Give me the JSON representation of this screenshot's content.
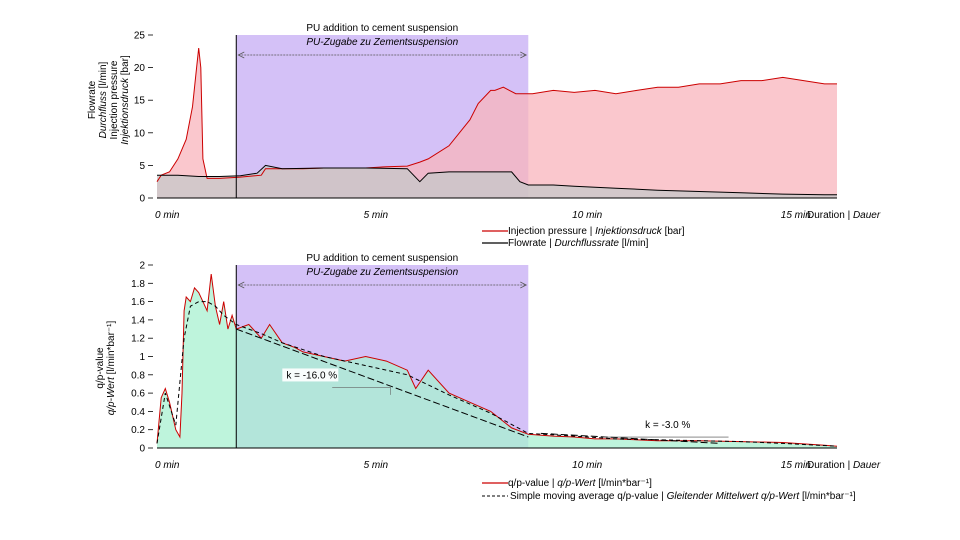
{
  "chart_data": [
    {
      "type": "area",
      "annotation": {
        "title": "PU addition to cement suspension",
        "subtitle": "PU-Zugabe zu Zementsuspension",
        "x_range": [
          1.9,
          8.9
        ]
      },
      "ylabel": {
        "line1": "Flowrate",
        "line2": "Durchfluss",
        "line2_unit": " [l/min]",
        "line3": "Injection pressure",
        "line4": "Injektionsdruck",
        "line4_unit": " [bar]"
      },
      "xlabel": {
        "main": "Duration | ",
        "italic": "Dauer"
      },
      "xticks": [
        {
          "x": 0,
          "label": "0 min"
        },
        {
          "x": 5,
          "label": "5 min"
        },
        {
          "x": 10,
          "label": "10 min"
        },
        {
          "x": 15,
          "label": "15 min"
        }
      ],
      "yticks": [
        {
          "y": 0,
          "label": "0"
        },
        {
          "y": 5,
          "label": "5"
        },
        {
          "y": 10,
          "label": "10"
        },
        {
          "y": 15,
          "label": "15"
        },
        {
          "y": 20,
          "label": "20"
        },
        {
          "y": 25,
          "label": "25"
        }
      ],
      "xlim": [
        0,
        16.3
      ],
      "ylim": [
        0,
        25
      ],
      "grid": false,
      "legend_position": "bottom-right",
      "series": [
        {
          "legend_main": "Injection pressure | ",
          "legend_italic": "Injektionsdruck",
          "legend_unit": " [bar]",
          "color": "#cc0000",
          "fill": "#f8b4bc",
          "x": [
            0,
            0.1,
            0.3,
            0.5,
            0.7,
            0.85,
            0.95,
            1.0,
            1.05,
            1.1,
            1.2,
            1.5,
            2.0,
            2.5,
            2.6,
            3.0,
            3.5,
            4.0,
            4.5,
            5.0,
            5.5,
            6.0,
            6.3,
            6.5,
            7.0,
            7.5,
            7.7,
            8.0,
            8.1,
            8.3,
            8.6,
            9.0,
            9.5,
            10.0,
            10.5,
            11.0,
            11.5,
            12.0,
            12.5,
            13.0,
            13.5,
            14.0,
            14.5,
            15.0,
            15.5,
            16.0,
            16.3
          ],
          "y": [
            2.5,
            3.5,
            4.0,
            6.0,
            9.0,
            14.0,
            20.0,
            23.0,
            20.0,
            6.0,
            3.0,
            3.0,
            3.2,
            3.5,
            4.5,
            4.5,
            4.5,
            4.6,
            4.6,
            4.6,
            4.8,
            4.9,
            5.5,
            6.0,
            8.0,
            12.0,
            14.5,
            16.5,
            16.5,
            17.0,
            16.0,
            16.0,
            16.5,
            16.2,
            16.5,
            16.0,
            16.5,
            17.0,
            17.0,
            17.5,
            17.5,
            18.0,
            18.0,
            18.5,
            18.0,
            17.5,
            17.5
          ]
        },
        {
          "legend_main": "Flowrate | ",
          "legend_italic": "Durchflussrate",
          "legend_unit": " [l/min]",
          "color": "#000000",
          "fill": "#c6c8c8",
          "x": [
            0,
            0.5,
            1.0,
            1.2,
            1.5,
            2.0,
            2.4,
            2.6,
            3.0,
            4.0,
            5.0,
            6.0,
            6.3,
            6.5,
            7.0,
            7.5,
            8.0,
            8.5,
            8.7,
            8.9,
            9.5,
            10.0,
            11.0,
            12.0,
            13.0,
            14.0,
            15.0,
            16.0,
            16.3
          ],
          "y": [
            3.5,
            3.5,
            3.3,
            3.3,
            3.3,
            3.4,
            3.8,
            5.0,
            4.5,
            4.6,
            4.6,
            4.5,
            2.5,
            3.8,
            4.0,
            4.0,
            4.0,
            4.0,
            2.5,
            2.0,
            2.0,
            1.8,
            1.5,
            1.2,
            1.0,
            0.8,
            0.6,
            0.5,
            0.5
          ]
        }
      ]
    },
    {
      "type": "area",
      "annotation": {
        "title": "PU addition to cement suspension",
        "subtitle": "PU-Zugabe zu Zementsuspension",
        "x_range": [
          1.9,
          8.9
        ]
      },
      "ylabel": {
        "line1": "q/p-value",
        "line2": "q/p-Wert",
        "line2_unit": " [l/min*bar⁻¹]"
      },
      "xlabel": {
        "main": "Duration | ",
        "italic": "Dauer"
      },
      "xticks": [
        {
          "x": 0,
          "label": "0 min"
        },
        {
          "x": 5,
          "label": "5 min"
        },
        {
          "x": 10,
          "label": "10 min"
        },
        {
          "x": 15,
          "label": "15 min"
        }
      ],
      "yticks": [
        {
          "y": 0,
          "label": "0"
        },
        {
          "y": 0.2,
          "label": "0.2"
        },
        {
          "y": 0.4,
          "label": "0.4"
        },
        {
          "y": 0.6,
          "label": "0.6"
        },
        {
          "y": 0.8,
          "label": "0.8"
        },
        {
          "y": 1.0,
          "label": "1"
        },
        {
          "y": 1.2,
          "label": "1.2"
        },
        {
          "y": 1.4,
          "label": "1.4"
        },
        {
          "y": 1.6,
          "label": "1.6"
        },
        {
          "y": 1.8,
          "label": "1.8"
        },
        {
          "y": 2.0,
          "label": "2"
        }
      ],
      "xlim": [
        0,
        16.3
      ],
      "ylim": [
        0,
        2
      ],
      "grid": false,
      "legend_position": "bottom-right",
      "trend_labels": [
        {
          "text": "k = -16.0 %",
          "x": 3.1,
          "y": 0.76
        },
        {
          "text": "k = -3.0 %",
          "x": 11.7,
          "y": 0.22
        }
      ],
      "series": [
        {
          "legend_main": "q/p-value | ",
          "legend_italic": "q/p-Wert",
          "legend_unit": " [l/min*bar⁻¹]",
          "color": "#cc0000",
          "fill": "#a8f0d0",
          "x": [
            0,
            0.1,
            0.2,
            0.3,
            0.45,
            0.55,
            0.6,
            0.65,
            0.7,
            0.8,
            0.9,
            1.0,
            1.1,
            1.2,
            1.3,
            1.4,
            1.5,
            1.6,
            1.7,
            1.8,
            1.9,
            2.2,
            2.5,
            2.7,
            3.0,
            3.3,
            3.5,
            4.0,
            4.5,
            5.0,
            5.5,
            6.0,
            6.2,
            6.5,
            7.0,
            7.5,
            8.0,
            8.5,
            8.9,
            9.5,
            10.0,
            10.5,
            11.0,
            12.0,
            13.0,
            14.0,
            15.0,
            16.0,
            16.3
          ],
          "y": [
            0.05,
            0.55,
            0.65,
            0.5,
            0.2,
            0.12,
            0.6,
            1.5,
            1.65,
            1.6,
            1.75,
            1.7,
            1.6,
            1.5,
            1.9,
            1.55,
            1.35,
            1.6,
            1.3,
            1.45,
            1.3,
            1.35,
            1.2,
            1.35,
            1.15,
            1.1,
            1.05,
            1.0,
            0.95,
            1.0,
            0.95,
            0.85,
            0.65,
            0.85,
            0.6,
            0.5,
            0.4,
            0.22,
            0.15,
            0.13,
            0.12,
            0.1,
            0.1,
            0.08,
            0.08,
            0.07,
            0.06,
            0.03,
            0.02
          ]
        },
        {
          "legend_main": "Simple moving average q/p-value | ",
          "legend_italic": "Gleitender Mittelwert q/p-Wert",
          "legend_unit": " [l/min*bar⁻¹]",
          "color": "#000000",
          "dashed": true,
          "x": [
            0,
            0.2,
            0.45,
            0.65,
            0.8,
            1.0,
            1.2,
            1.4,
            1.6,
            1.9,
            2.2,
            2.5,
            3.0,
            4.0,
            5.0,
            6.0,
            7.0,
            8.0,
            8.9,
            10.0,
            11.0,
            12.0,
            13.0,
            14.0,
            15.0,
            16.3
          ],
          "y": [
            0.05,
            0.6,
            0.25,
            1.2,
            1.55,
            1.6,
            1.6,
            1.55,
            1.45,
            1.35,
            1.3,
            1.25,
            1.15,
            1.0,
            0.9,
            0.8,
            0.58,
            0.38,
            0.16,
            0.13,
            0.1,
            0.09,
            0.08,
            0.07,
            0.05,
            0.02
          ]
        }
      ]
    }
  ]
}
